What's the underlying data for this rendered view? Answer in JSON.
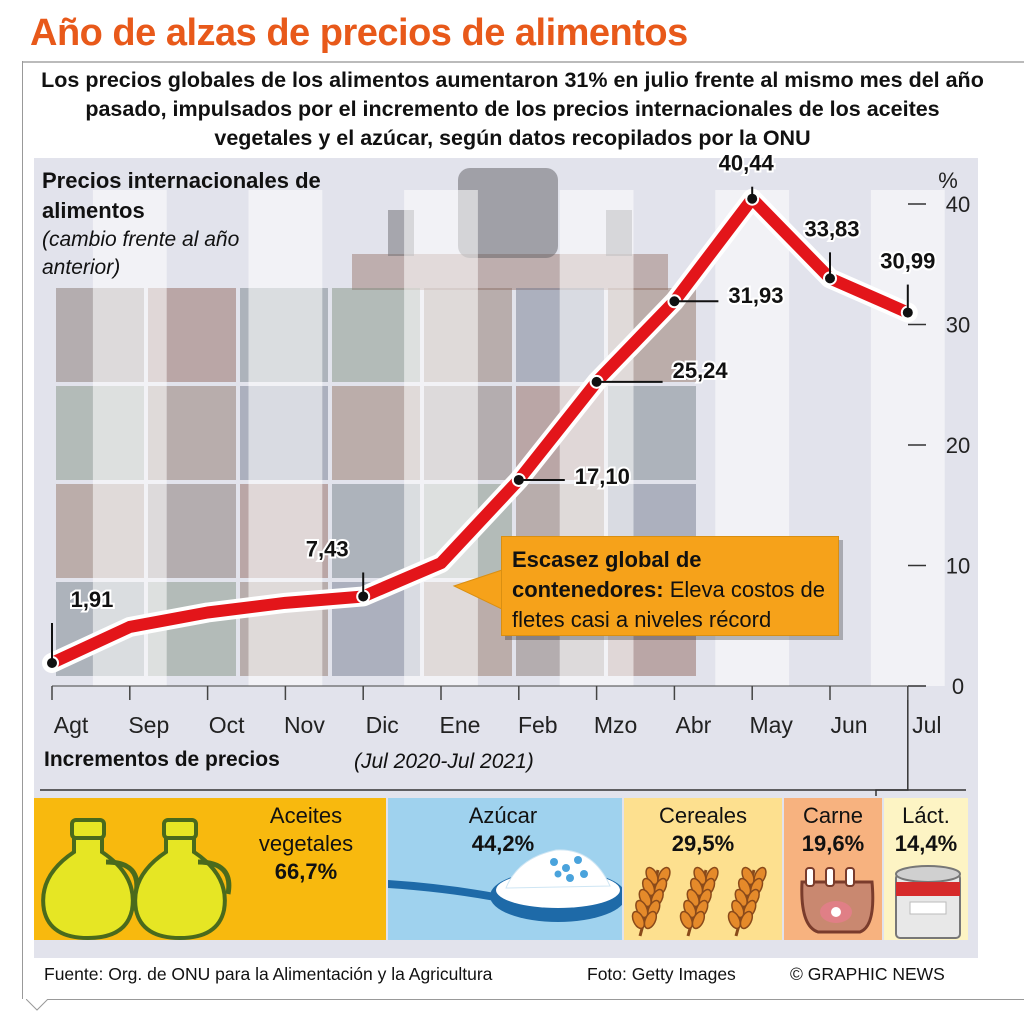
{
  "title": "Año de alzas de precios de alimentos",
  "subtitle": "Los precios globales de los alimentos aumentaron 31% en julio frente al mismo mes del año pasado, impulsados por el incremento de los precios internacionales de los aceites vegetales y el azúcar, según datos recopilados por la ONU",
  "chart_title": "Precios internacionales de alimentos",
  "chart_subtitle": "(cambio frente al año anterior)",
  "unit": "%",
  "callout": {
    "bold": "Escasez global de contenedores:",
    "text": "Eleva costos de fletes casi a niveles récord"
  },
  "chart_data": {
    "type": "line",
    "title": "Precios internacionales de alimentos",
    "subtitle": "(cambio frente al año anterior)",
    "ylabel": "%",
    "ylim": [
      0,
      40
    ],
    "yticks": [
      0,
      10,
      20,
      30,
      40
    ],
    "categories": [
      "Agt",
      "Sep",
      "Oct",
      "Nov",
      "Dic",
      "Ene",
      "Feb",
      "Mzo",
      "Abr",
      "May",
      "Jun",
      "Jul"
    ],
    "values": [
      1.91,
      4.9,
      6.1,
      6.9,
      7.43,
      10.2,
      17.1,
      25.24,
      31.93,
      40.44,
      33.83,
      30.99
    ],
    "labeled_points": [
      {
        "index": 0,
        "label": "1,91"
      },
      {
        "index": 4,
        "label": "7,43"
      },
      {
        "index": 6,
        "label": "17,10"
      },
      {
        "index": 7,
        "label": "25,24"
      },
      {
        "index": 8,
        "label": "31,93"
      },
      {
        "index": 9,
        "label": "40,44"
      },
      {
        "index": 10,
        "label": "33,83"
      },
      {
        "index": 11,
        "label": "30,99"
      }
    ],
    "line_color": "#e3151a",
    "grid": false
  },
  "increments": {
    "title": "Incrementos de precios",
    "range": "(Jul 2020-Jul 2021)",
    "items": [
      {
        "name": "Aceites vegetales",
        "name_line1": "Aceites",
        "name_line2": "vegetales",
        "value": "66,7%",
        "color": "#f8b90e",
        "icon": "oil-bottle-icon"
      },
      {
        "name": "Azúcar",
        "value": "44,2%",
        "color": "#9fd2ee",
        "icon": "sugar-spoon-icon"
      },
      {
        "name": "Cereales",
        "value": "29,5%",
        "color": "#fde08f",
        "icon": "wheat-icon"
      },
      {
        "name": "Carne",
        "value": "19,6%",
        "color": "#f7b27f",
        "icon": "meat-icon"
      },
      {
        "name": "Láct.",
        "value": "14,4%",
        "color": "#fdf4c4",
        "icon": "milk-can-icon"
      }
    ]
  },
  "footer": {
    "source": "Fuente: Org. de ONU para la Alimentación y la Agricultura",
    "photo": "Foto: Getty Images",
    "credit": "© GRAPHIC NEWS"
  }
}
